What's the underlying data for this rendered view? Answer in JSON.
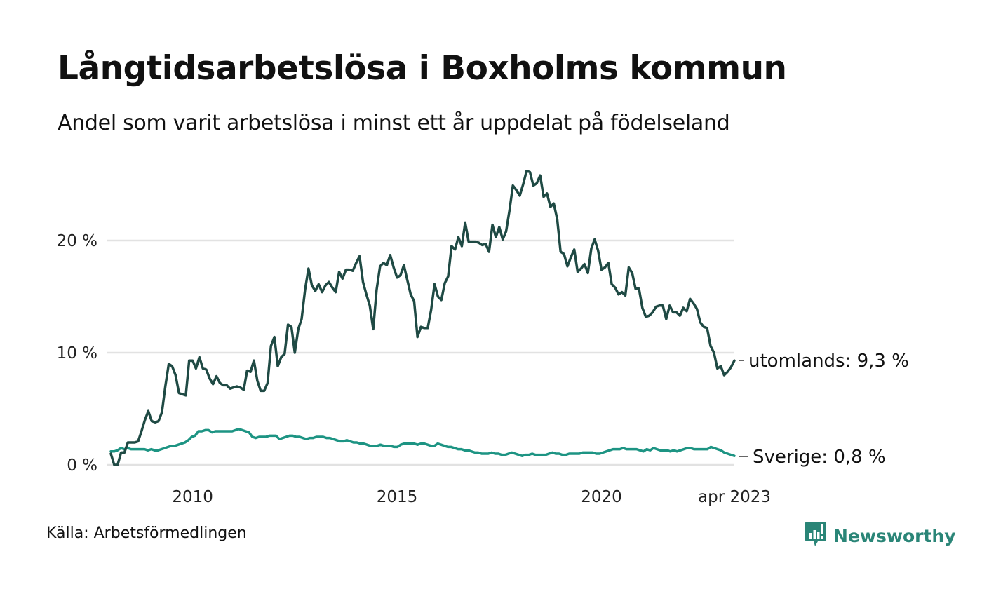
{
  "chart_data": {
    "type": "line",
    "title": "Långtidsarbetslösa i Boxholms kommun",
    "subtitle": "Andel som varit arbetslösa i minst ett år uppdelat på födelseland",
    "xlabel": "",
    "ylabel": "",
    "x_start": "2008-01",
    "x_end": "2023-04",
    "x_frequency": "monthly",
    "xlim": [
      2008.0,
      2023.25
    ],
    "ylim": [
      0,
      27
    ],
    "grid": true,
    "legend": "end-of-line labels (right)",
    "y_ticks": [
      {
        "value": 0,
        "label": "0 %"
      },
      {
        "value": 10,
        "label": "10 %"
      },
      {
        "value": 20,
        "label": "20 %"
      }
    ],
    "x_ticks": [
      {
        "value": 2010.0,
        "label": "2010"
      },
      {
        "value": 2015.0,
        "label": "2015"
      },
      {
        "value": 2020.0,
        "label": "2020"
      },
      {
        "value": 2023.25,
        "label": "apr 2023"
      }
    ],
    "series": [
      {
        "name": "utomlands",
        "end_label": "utomlands: 9,3 %",
        "color": "#1f4a44",
        "values": [
          1.0,
          0.0,
          0.0,
          1.1,
          1.1,
          2.0,
          2.0,
          2.0,
          2.1,
          3.0,
          4.0,
          4.8,
          3.9,
          3.8,
          3.9,
          4.7,
          7.0,
          9.0,
          8.8,
          8.0,
          6.4,
          6.3,
          6.2,
          9.3,
          9.3,
          8.6,
          9.6,
          8.6,
          8.5,
          7.7,
          7.2,
          7.9,
          7.3,
          7.1,
          7.1,
          6.8,
          6.9,
          7.0,
          6.9,
          6.7,
          8.4,
          8.3,
          9.3,
          7.5,
          6.6,
          6.6,
          7.3,
          10.6,
          11.4,
          8.8,
          9.6,
          9.9,
          12.5,
          12.3,
          10.0,
          12.1,
          13.0,
          15.6,
          17.5,
          16.0,
          15.5,
          16.1,
          15.4,
          16.0,
          16.3,
          15.8,
          15.4,
          17.2,
          16.6,
          17.4,
          17.4,
          17.3,
          18.0,
          18.6,
          16.3,
          15.2,
          14.2,
          12.1,
          15.6,
          17.7,
          18.0,
          17.8,
          18.7,
          17.6,
          16.7,
          16.9,
          17.8,
          16.5,
          15.2,
          14.6,
          11.4,
          12.3,
          12.2,
          12.2,
          13.8,
          16.1,
          15.0,
          14.7,
          16.2,
          16.8,
          19.5,
          19.2,
          20.3,
          19.5,
          21.6,
          19.9,
          19.9,
          19.9,
          19.8,
          19.6,
          19.7,
          19.0,
          21.4,
          20.3,
          21.2,
          20.1,
          20.8,
          22.7,
          24.9,
          24.5,
          24.0,
          25.0,
          26.2,
          26.1,
          24.9,
          25.1,
          25.8,
          23.9,
          24.2,
          23.0,
          23.3,
          21.9,
          19.0,
          18.8,
          17.7,
          18.5,
          19.2,
          17.2,
          17.5,
          17.9,
          17.1,
          19.3,
          20.1,
          19.1,
          17.4,
          17.6,
          18.0,
          16.1,
          15.8,
          15.2,
          15.4,
          15.1,
          17.6,
          17.1,
          15.7,
          15.7,
          14.0,
          13.2,
          13.3,
          13.6,
          14.1,
          14.2,
          14.2,
          13.0,
          14.2,
          13.6,
          13.6,
          13.3,
          14.0,
          13.7,
          14.8,
          14.4,
          13.9,
          12.7,
          12.3,
          12.2,
          10.6,
          10.0,
          8.6,
          8.8,
          8.0,
          8.3,
          8.7,
          9.3
        ]
      },
      {
        "name": "Sverige",
        "end_label": "Sverige: 0,8 %",
        "color": "#1d9483",
        "values": [
          1.2,
          1.2,
          1.3,
          1.5,
          1.4,
          1.5,
          1.4,
          1.4,
          1.4,
          1.4,
          1.4,
          1.3,
          1.4,
          1.3,
          1.3,
          1.4,
          1.5,
          1.6,
          1.7,
          1.7,
          1.8,
          1.9,
          2.0,
          2.2,
          2.5,
          2.6,
          3.0,
          3.0,
          3.1,
          3.1,
          2.9,
          3.0,
          3.0,
          3.0,
          3.0,
          3.0,
          3.0,
          3.1,
          3.2,
          3.1,
          3.0,
          2.9,
          2.5,
          2.4,
          2.5,
          2.5,
          2.5,
          2.6,
          2.6,
          2.6,
          2.3,
          2.4,
          2.5,
          2.6,
          2.6,
          2.5,
          2.5,
          2.4,
          2.3,
          2.4,
          2.4,
          2.5,
          2.5,
          2.5,
          2.4,
          2.4,
          2.3,
          2.2,
          2.1,
          2.1,
          2.2,
          2.1,
          2.0,
          2.0,
          1.9,
          1.9,
          1.8,
          1.7,
          1.7,
          1.7,
          1.8,
          1.7,
          1.7,
          1.7,
          1.6,
          1.6,
          1.8,
          1.9,
          1.9,
          1.9,
          1.9,
          1.8,
          1.9,
          1.9,
          1.8,
          1.7,
          1.7,
          1.9,
          1.8,
          1.7,
          1.6,
          1.6,
          1.5,
          1.4,
          1.4,
          1.3,
          1.3,
          1.2,
          1.1,
          1.1,
          1.0,
          1.0,
          1.0,
          1.1,
          1.0,
          1.0,
          0.9,
          0.9,
          1.0,
          1.1,
          1.0,
          0.9,
          0.8,
          0.9,
          0.9,
          1.0,
          0.9,
          0.9,
          0.9,
          0.9,
          1.0,
          1.1,
          1.0,
          1.0,
          0.9,
          0.9,
          1.0,
          1.0,
          1.0,
          1.0,
          1.1,
          1.1,
          1.1,
          1.1,
          1.0,
          1.0,
          1.1,
          1.2,
          1.3,
          1.4,
          1.4,
          1.4,
          1.5,
          1.4,
          1.4,
          1.4,
          1.4,
          1.3,
          1.2,
          1.4,
          1.3,
          1.5,
          1.4,
          1.3,
          1.3,
          1.3,
          1.2,
          1.3,
          1.2,
          1.3,
          1.4,
          1.5,
          1.5,
          1.4,
          1.4,
          1.4,
          1.4,
          1.4,
          1.6,
          1.5,
          1.4,
          1.3,
          1.1,
          1.0,
          0.9,
          0.8
        ]
      }
    ]
  },
  "footer": {
    "source": "Källa: Arbetsförmedlingen",
    "brand": "Newsworthy",
    "brand_color": "#2a8577",
    "brand_icon": "newsworthy-chart-bubble-icon"
  },
  "colors": {
    "gridline": "#e2e2e2",
    "text": "#111111"
  }
}
